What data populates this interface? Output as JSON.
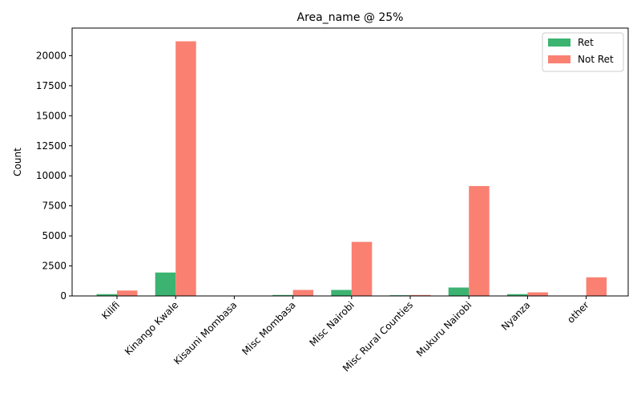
{
  "chart_data": {
    "type": "bar",
    "title": "Area_name @ 25%",
    "xlabel": "",
    "ylabel": "Count",
    "ylim": [
      0,
      22300
    ],
    "yticks": [
      0,
      2500,
      5000,
      7500,
      10000,
      12500,
      15000,
      17500,
      20000
    ],
    "grid": false,
    "legend_position": "top-right",
    "categories": [
      "Kilifi",
      "Kinango Kwale",
      "Kisauni Mombasa",
      "Misc Mombasa",
      "Misc Nairobi",
      "Misc Rural Counties",
      "Mukuru Nairobi",
      "Nyanza",
      "other"
    ],
    "series": [
      {
        "name": "Ret",
        "color": "#3cb371",
        "values": [
          150,
          1950,
          10,
          80,
          500,
          60,
          700,
          150,
          20
        ]
      },
      {
        "name": "Not Ret",
        "color": "#fa8072",
        "values": [
          450,
          21200,
          10,
          500,
          4500,
          80,
          9150,
          300,
          1550
        ]
      }
    ]
  }
}
